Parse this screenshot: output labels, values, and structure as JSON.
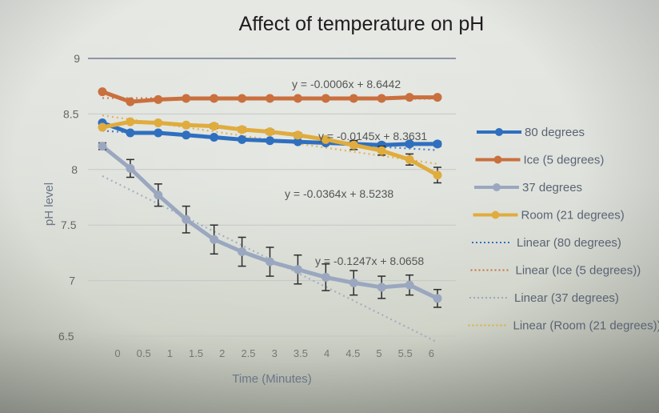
{
  "chart_data": {
    "type": "line",
    "title": "Affect of temperature on pH",
    "xlabel": "Time (Minutes)",
    "ylabel": "pH level",
    "xlim": [
      0,
      6
    ],
    "ylim": [
      6.5,
      9
    ],
    "x_ticks": [
      "0",
      "0.5",
      "1",
      "1.5",
      "2",
      "2.5",
      "3",
      "3.5",
      "4",
      "4.5",
      "5",
      "5.5",
      "6"
    ],
    "y_ticks": [
      "9",
      "8.5",
      "8",
      "7.5",
      "7",
      "6.5"
    ],
    "x": [
      0,
      0.5,
      1,
      1.5,
      2,
      2.5,
      3,
      3.5,
      4,
      4.5,
      5,
      5.5,
      6
    ],
    "grid": true,
    "legend_position": "right",
    "series": [
      {
        "name": "80 degrees",
        "color": "#2f6fbf",
        "values": [
          8.42,
          8.33,
          8.33,
          8.31,
          8.29,
          8.27,
          8.26,
          8.25,
          8.24,
          8.23,
          8.22,
          8.23,
          8.23
        ],
        "error": [
          0.01,
          0.01,
          0.01,
          0.01,
          0.01,
          0.01,
          0.01,
          0.01,
          0.01,
          0.02,
          0.02,
          0.02,
          0.02
        ]
      },
      {
        "name": "Ice (5 degrees)",
        "color": "#c9703e",
        "values": [
          8.7,
          8.61,
          8.63,
          8.64,
          8.64,
          8.64,
          8.64,
          8.64,
          8.64,
          8.64,
          8.64,
          8.65,
          8.65
        ],
        "error": [
          0,
          0,
          0,
          0,
          0,
          0,
          0,
          0,
          0,
          0,
          0,
          0,
          0
        ]
      },
      {
        "name": "37 degrees",
        "color": "#9aa7bf",
        "values": [
          8.21,
          8.01,
          7.77,
          7.55,
          7.37,
          7.26,
          7.17,
          7.1,
          7.03,
          6.98,
          6.94,
          6.96,
          6.84
        ],
        "error": [
          0.03,
          0.08,
          0.1,
          0.12,
          0.13,
          0.13,
          0.13,
          0.13,
          0.12,
          0.11,
          0.1,
          0.09,
          0.08
        ]
      },
      {
        "name": "Room (21 degrees)",
        "color": "#e0ac3e",
        "values": [
          8.38,
          8.43,
          8.42,
          8.4,
          8.39,
          8.36,
          8.34,
          8.31,
          8.27,
          8.22,
          8.17,
          8.09,
          7.95
        ],
        "error": [
          0,
          0,
          0,
          0.01,
          0.02,
          0.02,
          0.02,
          0.02,
          0.02,
          0.04,
          0.04,
          0.05,
          0.07
        ]
      }
    ],
    "trendlines": [
      {
        "name": "Linear (80 degrees)",
        "color": "#2f6fbf",
        "slope": -0.0145,
        "intercept": 8.3631,
        "equation": "y = -0.0145x + 8.3631"
      },
      {
        "name": "Linear (Ice (5 degrees))",
        "color": "#c9703e",
        "slope": -0.0006,
        "intercept": 8.6442,
        "equation": "y = -0.0006x + 8.6442"
      },
      {
        "name": "Linear (37 degrees)",
        "color": "#9aa7bf",
        "slope": -0.1247,
        "intercept": 8.0658,
        "equation": "y = -0.1247x + 8.0658"
      },
      {
        "name": "Linear (Room (21 degrees))",
        "color": "#e0ac3e",
        "slope": -0.0364,
        "intercept": 8.5238,
        "equation": "y = -0.0364x + 8.5238"
      }
    ]
  }
}
